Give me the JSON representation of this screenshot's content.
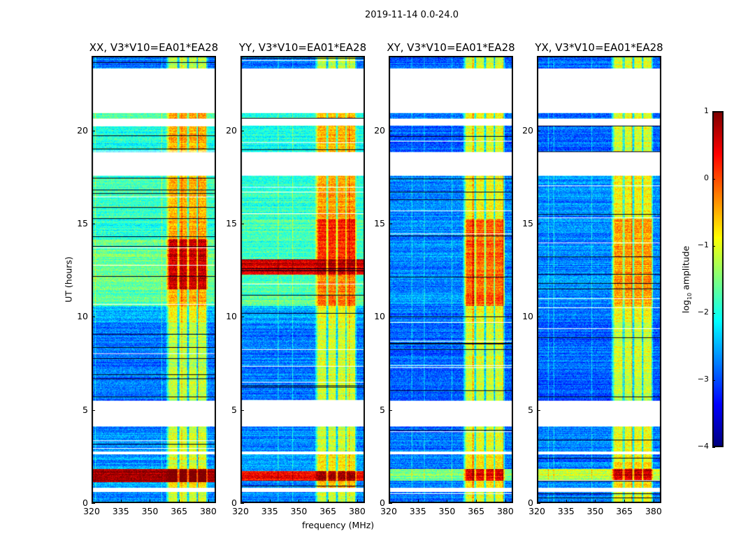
{
  "chart_data": {
    "type": "heatmap",
    "title": "2019-11-14 0.0-24.0",
    "xlabel": "frequency (MHz)",
    "ylabel": "UT (hours)",
    "xlim": [
      320,
      384
    ],
    "ylim": [
      0,
      24
    ],
    "xticks": [
      320,
      335,
      350,
      365,
      380
    ],
    "yticks": [
      0,
      5,
      10,
      15,
      20
    ],
    "colorbar": {
      "label": "log10 amplitude",
      "label_main": "log",
      "label_sub": "10",
      "label_tail": " amplitude",
      "range": [
        -4,
        1
      ],
      "ticks": [
        1,
        0,
        -1,
        -2,
        -3,
        -4
      ],
      "tick_labels": [
        "1",
        "0",
        "−1",
        "−2",
        "−3",
        "−4"
      ],
      "colormap": "jet"
    },
    "flagged_hours": [
      [
        23.4,
        21.0
      ],
      [
        18.9,
        17.6
      ],
      [
        5.5,
        4.1
      ],
      [
        2.75,
        2.6
      ],
      [
        0.8,
        0.6
      ]
    ],
    "bright_band_mhz": [
      360,
      380
    ],
    "panels": [
      {
        "title": "XX, V3*V10=EA01*EA28",
        "segments": [
          [
            0,
            0.6,
            -2.7,
            1.6
          ],
          [
            0.8,
            1.1,
            -2.6,
            1.8
          ],
          [
            1.1,
            1.8,
            0.8,
            0.3
          ],
          [
            1.8,
            2.6,
            -2.7,
            1.6
          ],
          [
            2.75,
            4.1,
            -2.7,
            1.6
          ],
          [
            5.5,
            9.7,
            -2.8,
            1.6
          ],
          [
            9.7,
            10.6,
            -2.5,
            1.6
          ],
          [
            10.6,
            11.5,
            -1.7,
            1.2
          ],
          [
            11.5,
            14.2,
            -1.6,
            2.2
          ],
          [
            14.2,
            15.3,
            -2.0,
            1.5
          ],
          [
            15.3,
            17.6,
            -1.8,
            1.3
          ],
          [
            18.9,
            20.3,
            -2.0,
            1.5
          ],
          [
            20.7,
            21.0,
            -1.8,
            1.3
          ],
          [
            23.4,
            24,
            -2.8,
            1.6
          ]
        ]
      },
      {
        "title": "YY, V3*V10=EA01*EA28",
        "segments": [
          [
            0,
            0.6,
            -2.7,
            1.6
          ],
          [
            0.8,
            1.2,
            -2.7,
            2.2
          ],
          [
            1.2,
            1.7,
            0.4,
            0.5
          ],
          [
            1.7,
            2.6,
            -2.6,
            1.8
          ],
          [
            2.75,
            4.1,
            -2.7,
            1.6
          ],
          [
            5.5,
            9.7,
            -2.8,
            1.7
          ],
          [
            9.7,
            10.6,
            -2.5,
            1.6
          ],
          [
            10.6,
            12.3,
            -1.7,
            1.5
          ],
          [
            12.3,
            13.1,
            0.6,
            0.2
          ],
          [
            13.1,
            15.3,
            -1.8,
            2.0
          ],
          [
            15.3,
            17.6,
            -1.9,
            1.5
          ],
          [
            18.9,
            20.3,
            -2.0,
            1.5
          ],
          [
            20.7,
            21.0,
            -1.9,
            1.4
          ],
          [
            23.4,
            24,
            -2.8,
            1.6
          ]
        ]
      },
      {
        "title": "XY, V3*V10=EA01*EA28",
        "segments": [
          [
            0,
            0.6,
            -2.8,
            1.8
          ],
          [
            0.8,
            1.2,
            -2.8,
            2.0
          ],
          [
            1.2,
            1.8,
            -1.5,
            2.0
          ],
          [
            1.8,
            2.6,
            -2.8,
            2.0
          ],
          [
            2.75,
            4.1,
            -2.8,
            1.8
          ],
          [
            5.5,
            9.7,
            -2.9,
            1.8
          ],
          [
            9.7,
            10.6,
            -2.8,
            1.9
          ],
          [
            10.6,
            15.3,
            -2.7,
            2.6
          ],
          [
            15.3,
            17.6,
            -2.7,
            1.8
          ],
          [
            18.9,
            20.3,
            -2.9,
            1.9
          ],
          [
            20.7,
            21.0,
            -2.9,
            1.9
          ],
          [
            23.4,
            24,
            -2.9,
            1.8
          ]
        ]
      },
      {
        "title": "YX, V3*V10=EA01*EA28",
        "segments": [
          [
            0,
            0.6,
            -2.8,
            1.8
          ],
          [
            0.8,
            1.2,
            -2.8,
            2.0
          ],
          [
            1.2,
            1.8,
            -1.2,
            1.8
          ],
          [
            1.8,
            2.6,
            -2.8,
            2.0
          ],
          [
            2.75,
            4.1,
            -2.8,
            1.8
          ],
          [
            5.5,
            9.7,
            -2.9,
            1.8
          ],
          [
            9.7,
            10.6,
            -2.8,
            1.9
          ],
          [
            10.6,
            15.3,
            -2.7,
            2.3
          ],
          [
            15.3,
            17.6,
            -2.7,
            1.8
          ],
          [
            18.9,
            20.3,
            -2.9,
            1.8
          ],
          [
            20.7,
            21.0,
            -2.9,
            1.9
          ],
          [
            23.4,
            24,
            -2.9,
            1.8
          ]
        ]
      }
    ]
  }
}
